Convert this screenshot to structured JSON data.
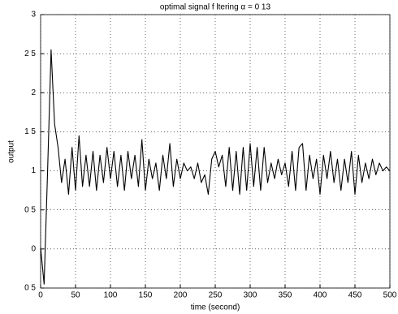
{
  "chart_data": {
    "type": "line",
    "title": "optimal signal f ltering α = 0 13",
    "xlabel": "time (second)",
    "ylabel": "output",
    "x": [
      0,
      5,
      10,
      15,
      20,
      25,
      30,
      35,
      40,
      45,
      50,
      55,
      60,
      65,
      70,
      75,
      80,
      85,
      90,
      95,
      100,
      105,
      110,
      115,
      120,
      125,
      130,
      135,
      140,
      145,
      150,
      155,
      160,
      165,
      170,
      175,
      180,
      185,
      190,
      195,
      200,
      205,
      210,
      215,
      220,
      225,
      230,
      235,
      240,
      245,
      250,
      255,
      260,
      265,
      270,
      275,
      280,
      285,
      290,
      295,
      300,
      305,
      310,
      315,
      320,
      325,
      330,
      335,
      340,
      345,
      350,
      355,
      360,
      365,
      370,
      375,
      380,
      385,
      390,
      395,
      400,
      405,
      410,
      415,
      420,
      425,
      430,
      435,
      440,
      445,
      450,
      455,
      460,
      465,
      470,
      475,
      480,
      485,
      490,
      495,
      500
    ],
    "series": [
      {
        "color": "#000000",
        "values": [
          0.02,
          -0.45,
          1.0,
          2.55,
          1.6,
          1.3,
          0.85,
          1.15,
          0.7,
          1.3,
          0.75,
          1.45,
          0.8,
          1.2,
          0.8,
          1.25,
          0.75,
          1.2,
          0.85,
          1.3,
          0.9,
          1.25,
          0.8,
          1.2,
          0.75,
          1.25,
          0.9,
          1.2,
          0.8,
          1.4,
          0.75,
          1.15,
          0.9,
          1.1,
          0.75,
          1.2,
          0.9,
          1.35,
          0.8,
          1.15,
          0.9,
          1.1,
          1.0,
          1.05,
          0.9,
          1.1,
          0.85,
          0.95,
          0.7,
          1.15,
          1.25,
          1.05,
          1.2,
          0.8,
          1.3,
          0.75,
          1.25,
          0.7,
          1.3,
          0.75,
          1.35,
          0.8,
          1.3,
          0.75,
          1.3,
          0.85,
          1.1,
          0.9,
          1.15,
          0.95,
          1.1,
          0.8,
          1.25,
          0.75,
          1.3,
          1.35,
          0.75,
          1.2,
          0.9,
          1.15,
          0.7,
          1.2,
          0.9,
          1.25,
          0.85,
          1.15,
          0.75,
          1.15,
          0.85,
          1.25,
          0.7,
          1.2,
          0.85,
          1.1,
          0.9,
          1.15,
          0.95,
          1.1,
          1.0,
          1.05,
          1.0
        ]
      }
    ],
    "xlim": [
      0,
      500
    ],
    "xticks": [
      0,
      50,
      100,
      150,
      200,
      250,
      300,
      350,
      400,
      450,
      500
    ],
    "ylim": [
      -0.5,
      3
    ],
    "yticks": [
      {
        "value": -0.5,
        "label": "0 5"
      },
      0,
      {
        "value": 0.5,
        "label": "0 5"
      },
      1,
      {
        "value": 1.5,
        "label": "1 5"
      },
      2,
      {
        "value": 2.5,
        "label": "2 5"
      },
      3
    ],
    "grid": true
  }
}
